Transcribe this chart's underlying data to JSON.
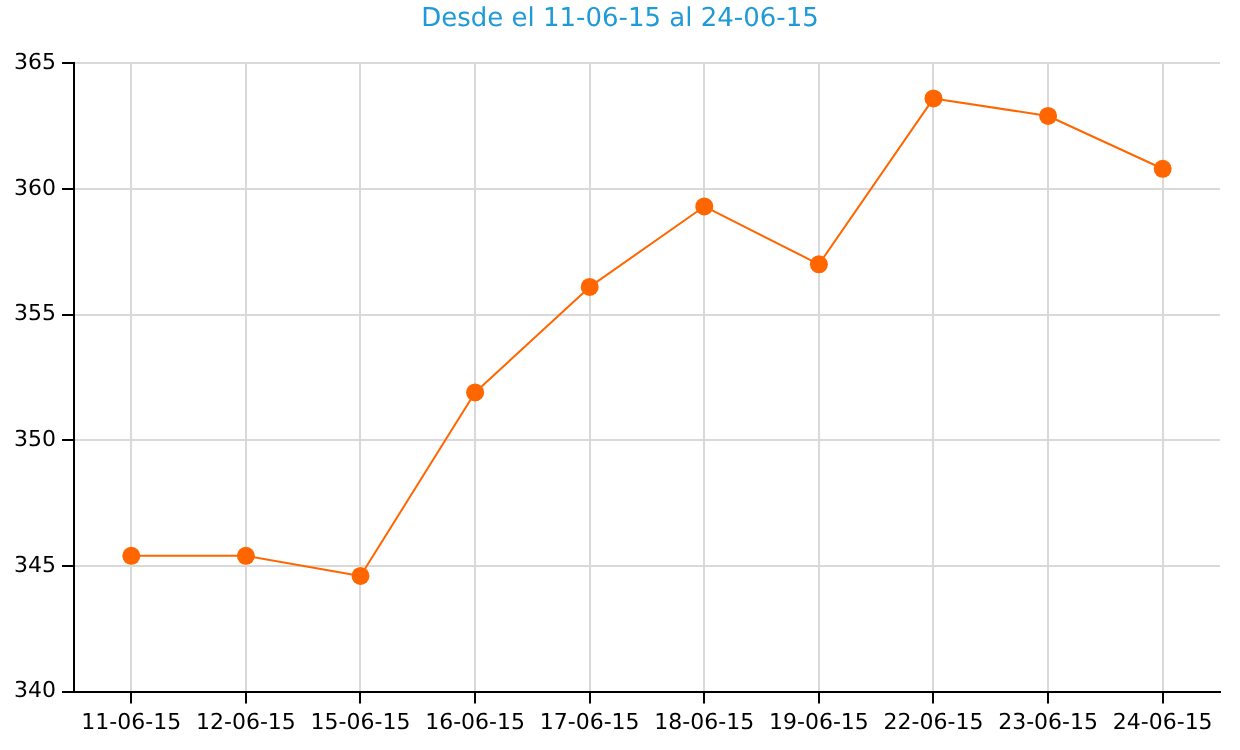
{
  "chart_data": {
    "type": "line",
    "title": "Desde el 11-06-15 al 24-06-15",
    "categories": [
      "11-06-15",
      "12-06-15",
      "15-06-15",
      "16-06-15",
      "17-06-15",
      "18-06-15",
      "19-06-15",
      "22-06-15",
      "23-06-15",
      "24-06-15"
    ],
    "series": [
      {
        "color": "#ff6600",
        "values": [
          345.4,
          345.4,
          344.6,
          351.9,
          356.1,
          359.3,
          357.0,
          363.6,
          362.9,
          360.8
        ]
      }
    ],
    "ylim": [
      340,
      365
    ],
    "yticks": [
      340,
      345,
      350,
      355,
      360,
      365
    ],
    "grid": true,
    "legend": false,
    "marker": "circle",
    "line_style": "solid"
  }
}
